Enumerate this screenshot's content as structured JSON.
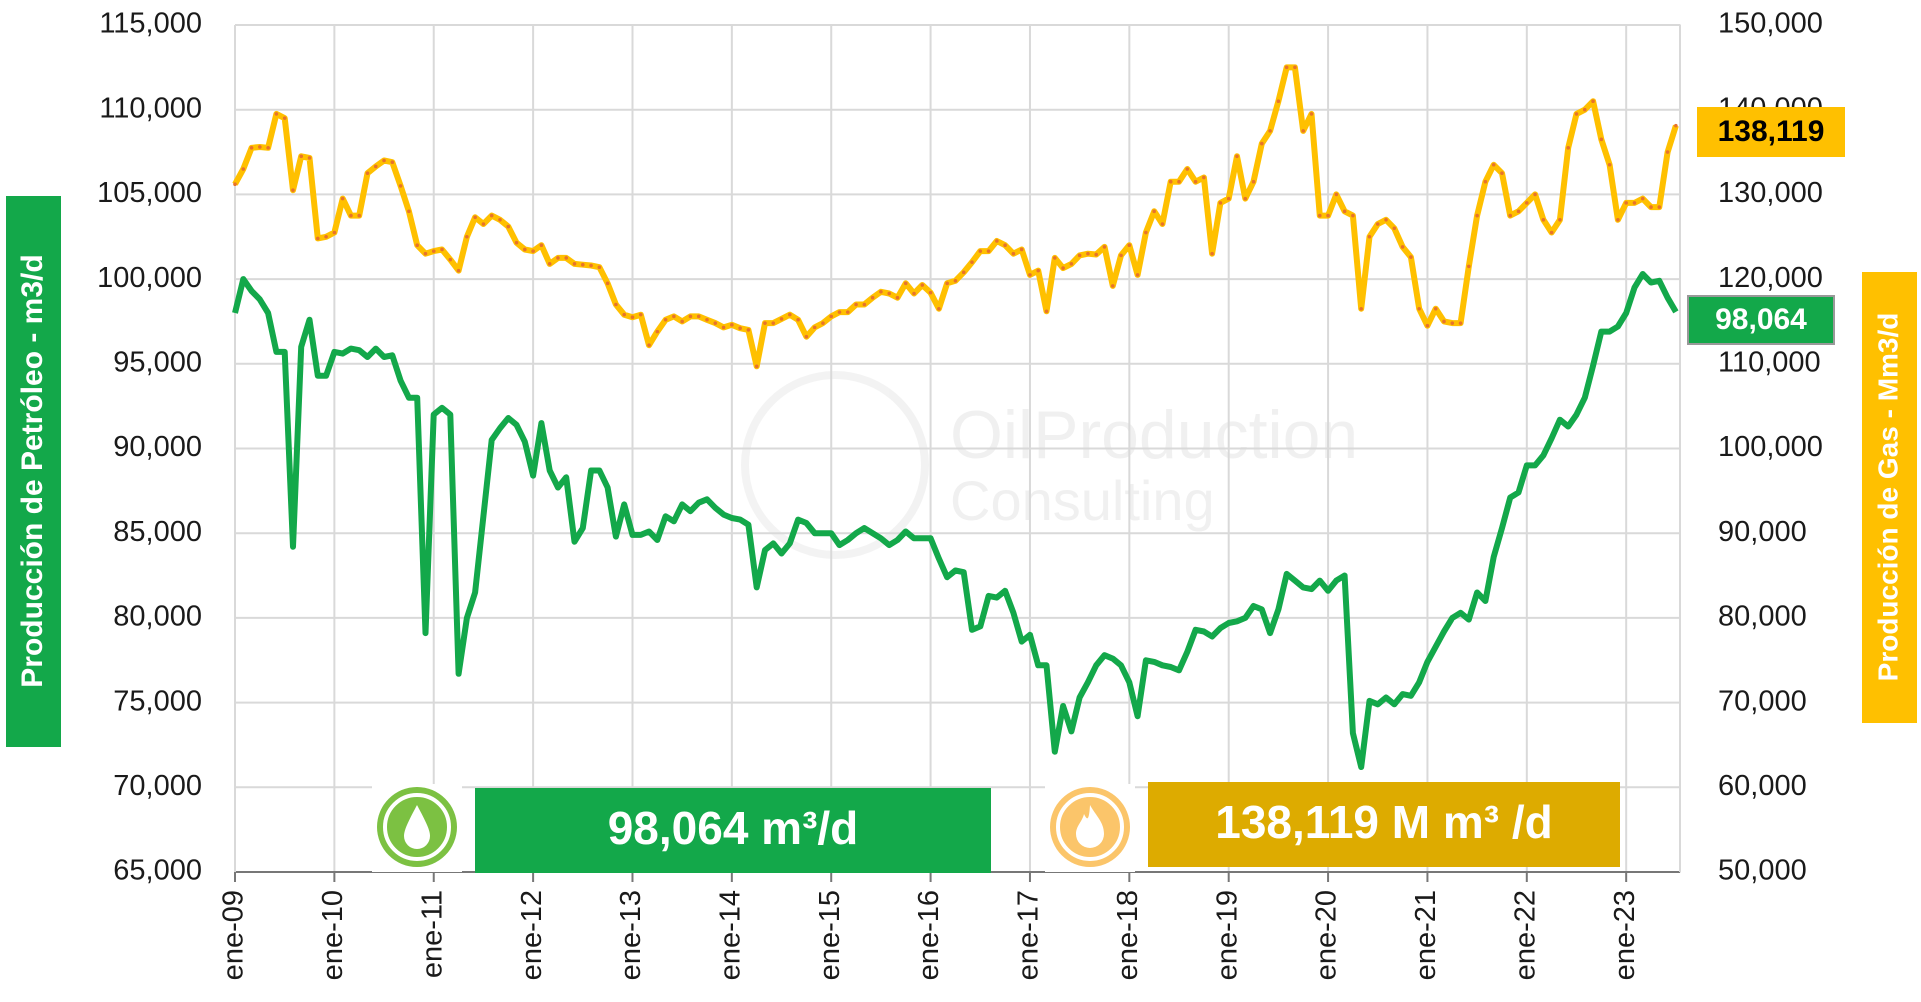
{
  "chart_data": {
    "type": "line",
    "y_label": "Producción de Petróleo - m3/d",
    "y2_label": "Producción de Gas - Mm3/d",
    "watermark": [
      "OilProduction",
      "Consulting"
    ],
    "oil_banner": "98,064 m³/d",
    "gas_banner": "138,119 M m³ /d",
    "grid": true,
    "categories": [
      "ene-09",
      null,
      null,
      null,
      null,
      null,
      null,
      null,
      null,
      null,
      null,
      null,
      "ene-10",
      null,
      null,
      null,
      null,
      null,
      null,
      null,
      null,
      null,
      null,
      null,
      "ene-11",
      null,
      null,
      null,
      null,
      null,
      null,
      null,
      null,
      null,
      null,
      null,
      "ene-12",
      null,
      null,
      null,
      null,
      null,
      null,
      null,
      null,
      null,
      null,
      null,
      "ene-13",
      null,
      null,
      null,
      null,
      null,
      null,
      null,
      null,
      null,
      null,
      null,
      "ene-14",
      null,
      null,
      null,
      null,
      null,
      null,
      null,
      null,
      null,
      null,
      null,
      "ene-15",
      null,
      null,
      null,
      null,
      null,
      null,
      null,
      null,
      null,
      null,
      null,
      "ene-16",
      null,
      null,
      null,
      null,
      null,
      null,
      null,
      null,
      null,
      null,
      null,
      "ene-17",
      null,
      null,
      null,
      null,
      null,
      null,
      null,
      null,
      null,
      null,
      null,
      "ene-18",
      null,
      null,
      null,
      null,
      null,
      null,
      null,
      null,
      null,
      null,
      null,
      "ene-19",
      null,
      null,
      null,
      null,
      null,
      null,
      null,
      null,
      null,
      null,
      null,
      "ene-20",
      null,
      null,
      null,
      null,
      null,
      null,
      null,
      null,
      null,
      null,
      null,
      "ene-21",
      null,
      null,
      null,
      null,
      null,
      null,
      null,
      null,
      null,
      null,
      null,
      "ene-22",
      null,
      null,
      null,
      null,
      null,
      null,
      null,
      null,
      null,
      null,
      null,
      "ene-23",
      null,
      null,
      null,
      null,
      null,
      null
    ],
    "ylim": [
      65000,
      115000
    ],
    "yticks": [
      {
        "value": 65000,
        "label": "65,000"
      },
      {
        "value": 70000,
        "label": "70,000"
      },
      {
        "value": 75000,
        "label": "75,000"
      },
      {
        "value": 80000,
        "label": "80,000"
      },
      {
        "value": 85000,
        "label": "85,000"
      },
      {
        "value": 90000,
        "label": "90,000"
      },
      {
        "value": 95000,
        "label": "95,000"
      },
      {
        "value": 100000,
        "label": "100,000"
      },
      {
        "value": 105000,
        "label": "105,000"
      },
      {
        "value": 110000,
        "label": "110,000"
      },
      {
        "value": 115000,
        "label": "115,000"
      }
    ],
    "y2lim": [
      50000,
      150000
    ],
    "y2ticks": [
      {
        "value": 50000,
        "label": "50,000"
      },
      {
        "value": 60000,
        "label": "60,000"
      },
      {
        "value": 70000,
        "label": "70,000"
      },
      {
        "value": 80000,
        "label": "80,000"
      },
      {
        "value": 90000,
        "label": "90,000"
      },
      {
        "value": 100000,
        "label": "100,000"
      },
      {
        "value": 110000,
        "label": "110,000"
      },
      {
        "value": 120000,
        "label": "120,000"
      },
      {
        "value": 130000,
        "label": "130,000"
      },
      {
        "value": 140000,
        "label": "140,000"
      },
      {
        "value": 150000,
        "label": "150,000"
      }
    ],
    "series": [
      {
        "name": "Petróleo",
        "color": "#13a84a",
        "end_label": "98,064",
        "values": [
          98000,
          100000,
          99300,
          98800,
          98000,
          95700,
          95700,
          84200,
          96000,
          97600,
          94300,
          94300,
          95700,
          95600,
          95900,
          95800,
          95400,
          95900,
          95400,
          95500,
          94000,
          93000,
          93000,
          79100,
          92000,
          92400,
          92000,
          76700,
          80000,
          81500,
          86000,
          90500,
          91200,
          91800,
          91400,
          90400,
          88400,
          91500,
          88700,
          87700,
          88300,
          84500,
          85300,
          88700,
          88700,
          87700,
          84800,
          86700,
          84900,
          84900,
          85100,
          84600,
          86000,
          85700,
          86700,
          86300,
          86800,
          87000,
          86500,
          86100,
          85900,
          85800,
          85500,
          81800,
          84000,
          84400,
          83800,
          84400,
          85800,
          85600,
          85000,
          85000,
          85000,
          84300,
          84600,
          85000,
          85300,
          85000,
          84700,
          84300,
          84600,
          85100,
          84700,
          84700,
          84700,
          83500,
          82400,
          82800,
          82700,
          79300,
          79500,
          81300,
          81200,
          81600,
          80300,
          78600,
          79000,
          77200,
          77200,
          72100,
          74800,
          73300,
          75300,
          76200,
          77200,
          77800,
          77600,
          77200,
          76200,
          74200,
          77500,
          77400,
          77200,
          77100,
          76900,
          78000,
          79300,
          79200,
          78900,
          79400,
          79700,
          79800,
          80000,
          80700,
          80500,
          79100,
          80500,
          82600,
          82200,
          81800,
          81700,
          82200,
          81600,
          82200,
          82500,
          73200,
          71200,
          75100,
          74900,
          75300,
          74900,
          75500,
          75400,
          76200,
          77400,
          78300,
          79200,
          80000,
          80300,
          79900,
          81500,
          81000,
          83600,
          85300,
          87100,
          87400,
          89000,
          89000,
          89600,
          90600,
          91700,
          91300,
          92000,
          93000,
          94900,
          96900,
          96900,
          97200,
          98000,
          99500,
          100300,
          99800,
          99900,
          98900,
          98064
        ]
      },
      {
        "name": "Gas",
        "color": "#ffc000",
        "marker_color": "#e8732a",
        "axis": "y2",
        "end_label": "138,119",
        "values": [
          131200,
          133000,
          135500,
          135600,
          135500,
          139500,
          139000,
          130500,
          134500,
          134300,
          124800,
          125000,
          125500,
          129500,
          127500,
          127500,
          132500,
          133300,
          134000,
          133800,
          131000,
          128000,
          124000,
          123000,
          123300,
          123500,
          122300,
          121000,
          125000,
          127300,
          126500,
          127500,
          127000,
          126200,
          124300,
          123500,
          123300,
          124000,
          121800,
          122500,
          122500,
          121800,
          121700,
          121600,
          121400,
          119500,
          117000,
          115800,
          115500,
          115800,
          112200,
          113800,
          115200,
          115600,
          115000,
          115600,
          115600,
          115200,
          114800,
          114300,
          114600,
          114200,
          114000,
          109700,
          114800,
          114800,
          115300,
          115800,
          115200,
          113200,
          114300,
          114800,
          115600,
          116100,
          116100,
          117000,
          117000,
          117800,
          118500,
          118300,
          117800,
          119500,
          118300,
          119300,
          118400,
          116500,
          119500,
          119800,
          120800,
          122000,
          123300,
          123300,
          124500,
          124000,
          123000,
          123500,
          120500,
          121000,
          116200,
          122500,
          121300,
          121800,
          122800,
          123000,
          122900,
          123800,
          119200,
          122800,
          124000,
          120500,
          125500,
          128000,
          126500,
          131500,
          131500,
          133000,
          131500,
          132000,
          123000,
          129000,
          129500,
          134500,
          129500,
          131500,
          136000,
          137500,
          141000,
          145000,
          145000,
          137500,
          139500,
          127500,
          127500,
          130000,
          128000,
          127500,
          116500,
          125000,
          126500,
          127000,
          126000,
          123800,
          122600,
          116500,
          114500,
          116500,
          115000,
          114800,
          114800,
          121500,
          127500,
          131500,
          133500,
          132500,
          127500,
          128000,
          129000,
          130000,
          127000,
          125500,
          127000,
          135500,
          139500,
          140000,
          141000,
          136500,
          133500,
          127000,
          129000,
          129000,
          129500,
          128500,
          128500,
          135000,
          138119
        ]
      }
    ]
  }
}
